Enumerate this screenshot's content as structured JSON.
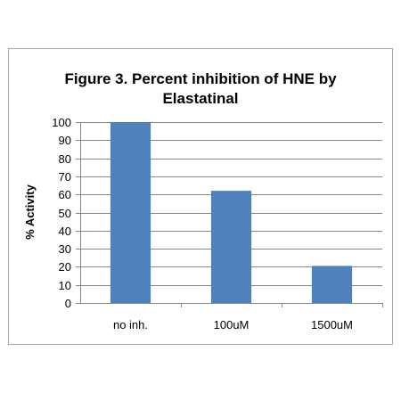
{
  "chart_data": {
    "type": "bar",
    "title_lines": [
      "Figure 3. Percent inhibition of HNE by",
      "Elastatinal"
    ],
    "xlabel": "",
    "ylabel": "% Activity",
    "categories": [
      "no inh.",
      "100uM",
      "1500uM"
    ],
    "series": [
      {
        "values": [
          100,
          62,
          20.5
        ]
      }
    ],
    "ylim": [
      0,
      100
    ],
    "yticks": [
      0,
      10,
      20,
      30,
      40,
      50,
      60,
      70,
      80,
      90,
      100
    ],
    "grid": true,
    "legend": "none",
    "bar_color": "#4f81bd",
    "grid_color": "#868686",
    "axis_color": "#868686"
  }
}
